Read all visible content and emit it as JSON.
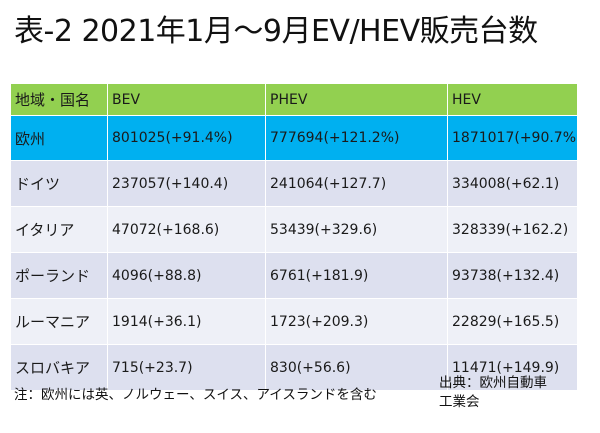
{
  "title": "表-2 2021年1月～9月EV/HEV販売台数",
  "table": {
    "headers": [
      "地域・国名",
      "BEV",
      "PHEV",
      "HEV"
    ],
    "rows": [
      [
        "欧州",
        "801025(+91.4%)",
        "777694(+121.2%)",
        "1871017(+90.7%)"
      ],
      [
        "ドイツ",
        "237057(+140.4)",
        "241064(+127.7)",
        "334008(+62.1)"
      ],
      [
        "イタリア",
        "47072(+168.6)",
        "53439(+329.6)",
        "328339(+162.2)"
      ],
      [
        "ポーランド",
        "4096(+88.8)",
        "6761(+181.9)",
        "93738(+132.4)"
      ],
      [
        "ルーマニア",
        "1914(+36.1)",
        "1723(+209.3)",
        "22829(+165.5)"
      ],
      [
        "スロバキア",
        "715(+23.7)",
        "830(+56.6)",
        "11471(+149.9)"
      ]
    ]
  },
  "note": "注：欧州には英、ノルウェー、スイス、アイスランドを含む",
  "source": {
    "line1": "出典：欧州自動車",
    "line2": "工業会"
  },
  "colors": {
    "header_bg": "#92d050",
    "europe_bg": "#00b0f0",
    "row_bg": "#dde0ef",
    "row_bg_alt": "#eef0f7"
  }
}
